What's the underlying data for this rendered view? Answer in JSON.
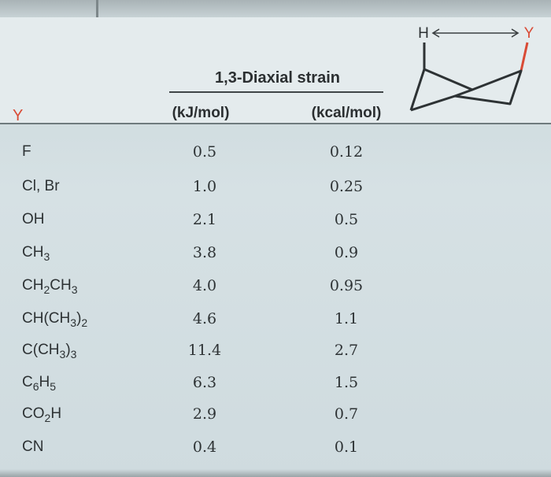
{
  "header": {
    "group_title": "1,3-Diaxial strain",
    "col_y": "Y",
    "col_kj": "(kJ/mol)",
    "col_kcal": "(kcal/mol)"
  },
  "diagram": {
    "left_label": "H",
    "right_label": "Y"
  },
  "rows": [
    {
      "y": "F",
      "kj": "0.5",
      "kcal": "0.12"
    },
    {
      "y": "Cl, Br",
      "kj": "1.0",
      "kcal": "0.25"
    },
    {
      "y": "OH",
      "kj": "2.1",
      "kcal": "0.5"
    },
    {
      "y": "CH3",
      "kj": "3.8",
      "kcal": "0.9"
    },
    {
      "y": "CH2CH3",
      "kj": "4.0",
      "kcal": "0.95"
    },
    {
      "y": "CH(CH3)2",
      "kj": "4.6",
      "kcal": "1.1"
    },
    {
      "y": "C(CH3)3",
      "kj": "11.4",
      "kcal": "2.7"
    },
    {
      "y": "C6H5",
      "kj": "6.3",
      "kcal": "1.5"
    },
    {
      "y": "CO2H",
      "kj": "2.9",
      "kcal": "0.7"
    },
    {
      "y": "CN",
      "kj": "0.4",
      "kcal": "0.1"
    }
  ],
  "colors": {
    "accent": "#d94b36",
    "text": "#2d3234",
    "background": "#d6e1e4"
  }
}
